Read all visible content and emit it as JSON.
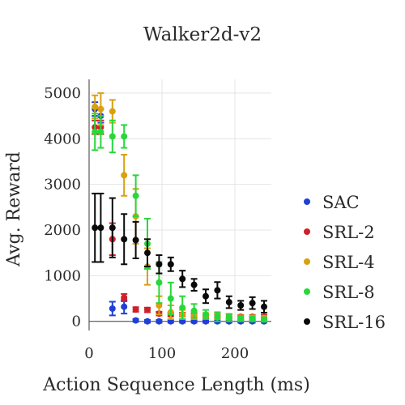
{
  "chart_data": {
    "type": "scatter",
    "title": "Walker2d-v2",
    "xlabel": "Action Sequence Length (ms)",
    "ylabel": "Avg. Reward",
    "xlim": [
      0,
      250
    ],
    "ylim": [
      -200,
      5300
    ],
    "xticks": [
      0,
      100,
      200
    ],
    "yticks": [
      0,
      1000,
      2000,
      3000,
      4000,
      5000
    ],
    "xtick_labels": [
      "0",
      "100",
      "200"
    ],
    "ytick_labels": [
      "0",
      "1000",
      "2000",
      "3000",
      "4000",
      "5000"
    ],
    "grid": true,
    "legend_position": "right",
    "series": [
      {
        "name": "SAC",
        "color": "#1f3fd6",
        "points": [
          {
            "x": 8,
            "y": 4650,
            "err": 150
          },
          {
            "x": 16,
            "y": 4500,
            "err": 150
          },
          {
            "x": 32,
            "y": 280,
            "err": 150
          },
          {
            "x": 48,
            "y": 320,
            "err": 150
          },
          {
            "x": 64,
            "y": 20,
            "err": 30
          },
          {
            "x": 80,
            "y": 0,
            "err": 30
          },
          {
            "x": 96,
            "y": 0,
            "err": 30
          },
          {
            "x": 112,
            "y": 0,
            "err": 30
          },
          {
            "x": 128,
            "y": 0,
            "err": 30
          },
          {
            "x": 144,
            "y": 0,
            "err": 30
          },
          {
            "x": 160,
            "y": 0,
            "err": 30
          },
          {
            "x": 176,
            "y": 0,
            "err": 30
          },
          {
            "x": 192,
            "y": 0,
            "err": 30
          },
          {
            "x": 208,
            "y": 0,
            "err": 30
          },
          {
            "x": 224,
            "y": 0,
            "err": 30
          },
          {
            "x": 240,
            "y": 0,
            "err": 30
          }
        ]
      },
      {
        "name": "SRL-2",
        "color": "#d01f2a",
        "points": [
          {
            "x": 8,
            "y": 4250,
            "err": 150
          },
          {
            "x": 16,
            "y": 4250,
            "err": 150
          },
          {
            "x": 32,
            "y": 1800,
            "err": 350
          },
          {
            "x": 48,
            "y": 520,
            "err": 80
          },
          {
            "x": 64,
            "y": 260,
            "err": 50
          },
          {
            "x": 80,
            "y": 250,
            "err": 50
          },
          {
            "x": 96,
            "y": 170,
            "err": 40
          },
          {
            "x": 112,
            "y": 150,
            "err": 40
          },
          {
            "x": 128,
            "y": 150,
            "err": 40
          },
          {
            "x": 144,
            "y": 130,
            "err": 40
          },
          {
            "x": 160,
            "y": 120,
            "err": 40
          },
          {
            "x": 176,
            "y": 120,
            "err": 40
          },
          {
            "x": 192,
            "y": 110,
            "err": 40
          },
          {
            "x": 208,
            "y": 100,
            "err": 40
          },
          {
            "x": 224,
            "y": 100,
            "err": 40
          },
          {
            "x": 240,
            "y": 100,
            "err": 40
          }
        ]
      },
      {
        "name": "SRL-4",
        "color": "#d9a010",
        "points": [
          {
            "x": 8,
            "y": 4700,
            "err": 250
          },
          {
            "x": 16,
            "y": 4650,
            "err": 350
          },
          {
            "x": 32,
            "y": 4600,
            "err": 250
          },
          {
            "x": 48,
            "y": 3200,
            "err": 450
          },
          {
            "x": 64,
            "y": 2300,
            "err": 600
          },
          {
            "x": 80,
            "y": 1200,
            "err": 400
          },
          {
            "x": 96,
            "y": 350,
            "err": 200
          },
          {
            "x": 112,
            "y": 200,
            "err": 150
          },
          {
            "x": 128,
            "y": 150,
            "err": 100
          },
          {
            "x": 144,
            "y": 130,
            "err": 80
          },
          {
            "x": 160,
            "y": 120,
            "err": 60
          },
          {
            "x": 176,
            "y": 110,
            "err": 60
          },
          {
            "x": 192,
            "y": 100,
            "err": 60
          },
          {
            "x": 208,
            "y": 80,
            "err": 50
          },
          {
            "x": 224,
            "y": 80,
            "err": 50
          },
          {
            "x": 240,
            "y": 70,
            "err": 50
          }
        ]
      },
      {
        "name": "SRL-8",
        "color": "#27d83a",
        "points": [
          {
            "x": 8,
            "y": 4150,
            "err": 400
          },
          {
            "x": 16,
            "y": 4150,
            "err": 350
          },
          {
            "x": 32,
            "y": 4050,
            "err": 350
          },
          {
            "x": 48,
            "y": 4050,
            "err": 250
          },
          {
            "x": 64,
            "y": 2750,
            "err": 450
          },
          {
            "x": 80,
            "y": 1700,
            "err": 550
          },
          {
            "x": 96,
            "y": 850,
            "err": 450
          },
          {
            "x": 112,
            "y": 500,
            "err": 350
          },
          {
            "x": 128,
            "y": 300,
            "err": 250
          },
          {
            "x": 144,
            "y": 230,
            "err": 150
          },
          {
            "x": 160,
            "y": 150,
            "err": 100
          },
          {
            "x": 176,
            "y": 100,
            "err": 100
          },
          {
            "x": 192,
            "y": 80,
            "err": 80
          },
          {
            "x": 208,
            "y": 60,
            "err": 60
          },
          {
            "x": 224,
            "y": 50,
            "err": 50
          },
          {
            "x": 240,
            "y": 40,
            "err": 50
          }
        ]
      },
      {
        "name": "SRL-16",
        "color": "#0a0a0a",
        "points": [
          {
            "x": 8,
            "y": 2050,
            "err": 750
          },
          {
            "x": 16,
            "y": 2050,
            "err": 750
          },
          {
            "x": 32,
            "y": 2050,
            "err": 650
          },
          {
            "x": 48,
            "y": 1800,
            "err": 550
          },
          {
            "x": 64,
            "y": 1780,
            "err": 400
          },
          {
            "x": 80,
            "y": 1500,
            "err": 300
          },
          {
            "x": 96,
            "y": 1250,
            "err": 200
          },
          {
            "x": 112,
            "y": 1250,
            "err": 150
          },
          {
            "x": 128,
            "y": 930,
            "err": 180
          },
          {
            "x": 144,
            "y": 800,
            "err": 130
          },
          {
            "x": 160,
            "y": 550,
            "err": 150
          },
          {
            "x": 176,
            "y": 680,
            "err": 180
          },
          {
            "x": 192,
            "y": 420,
            "err": 130
          },
          {
            "x": 208,
            "y": 350,
            "err": 100
          },
          {
            "x": 224,
            "y": 400,
            "err": 130
          },
          {
            "x": 240,
            "y": 320,
            "err": 130
          }
        ]
      }
    ]
  }
}
